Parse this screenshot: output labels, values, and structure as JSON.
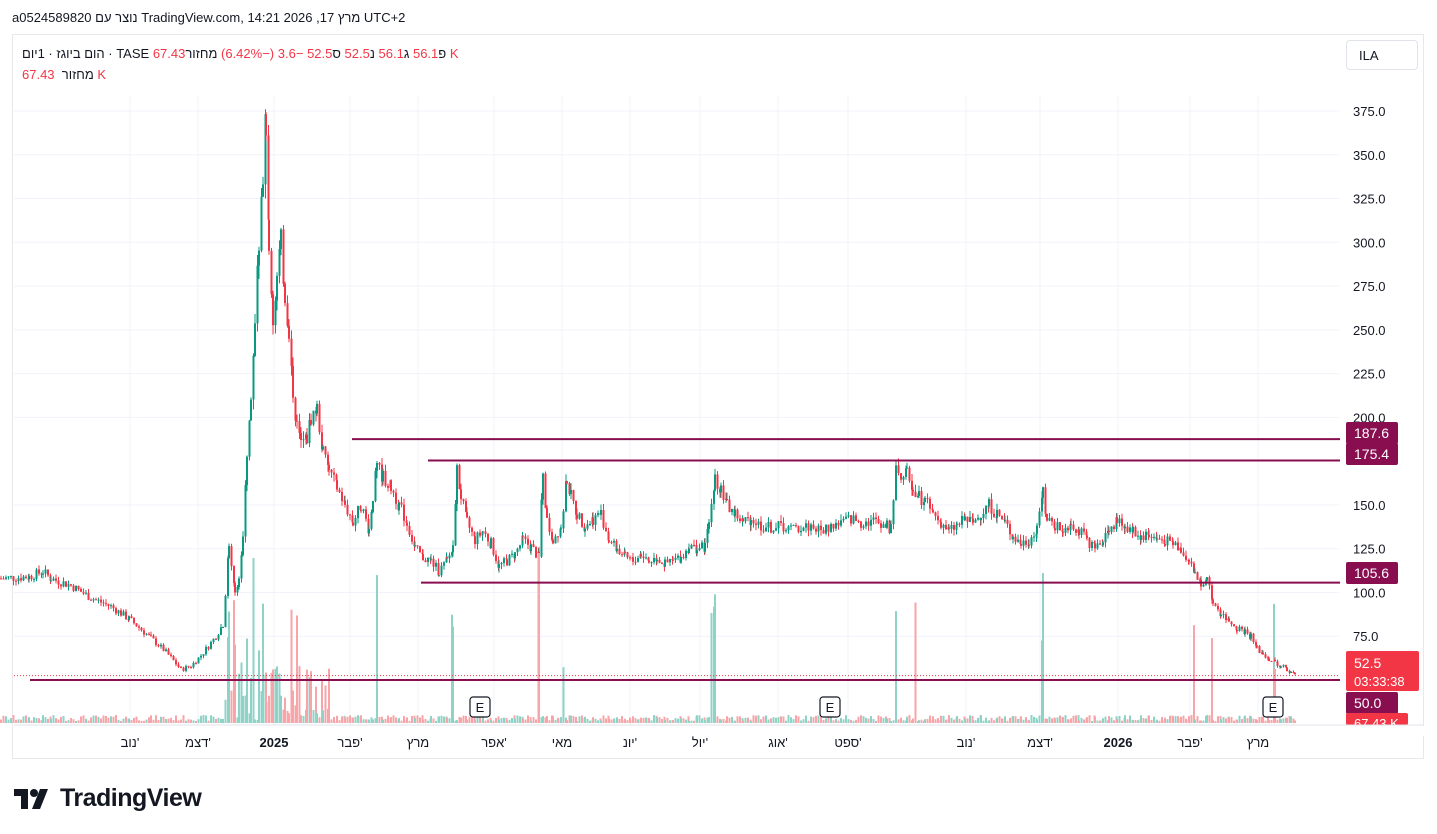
{
  "header": {
    "text": "a0524589820 נוצר עם TradingView.com, 14:21 2026 ,מרץ 17 UTC+2"
  },
  "legend": {
    "title": "הום ביוגז · 1יום · TASE",
    "open_label": "פ",
    "open": "56.1",
    "high_label": "ג",
    "high": "56.1",
    "low_label": "נ",
    "low": "52.5",
    "close_label": "ס",
    "close": "52.5",
    "change": "−3.6 (−6.42%)",
    "volume_label": "מחזור",
    "volume": "67.43 K"
  },
  "symbol_button": "ILA",
  "colors": {
    "up": "#089981",
    "down": "#f23645",
    "vol_up": "#8fd3c7",
    "vol_down": "#f7a5a9",
    "level_line": "#880e4f",
    "grid": "#f0f3fa"
  },
  "chart_data": {
    "type": "candlestick",
    "ylim": [
      42,
      385
    ],
    "y_ticks": [
      "375.0",
      "350.0",
      "325.0",
      "300.0",
      "275.0",
      "250.0",
      "225.0",
      "200.0",
      "150.0",
      "125.0",
      "100.0",
      "75.0"
    ],
    "x_ticks": [
      "נוב'",
      "דצמ'",
      "2025",
      "פבר'",
      "מרץ",
      "אפר'",
      "מאי",
      "יונ'",
      "יול'",
      "אוג'",
      "ספט'",
      "נוב'",
      "דצמ'",
      "2026",
      "פבר'",
      "מרץ"
    ],
    "horizontal_levels": [
      {
        "value": 187.6,
        "label": "187.6"
      },
      {
        "value": 175.4,
        "label": "175.4"
      },
      {
        "value": 105.6,
        "label": "105.6"
      },
      {
        "value": 50.0,
        "label": "50.0"
      }
    ],
    "last_price": {
      "value": 52.5,
      "label": "52.5",
      "countdown": "03:33:38"
    },
    "volume_label": "67.43 K",
    "earnings_markers": [
      "E",
      "E",
      "E"
    ],
    "price_path": [
      [
        0,
        108
      ],
      [
        28,
        109
      ],
      [
        42,
        112
      ],
      [
        50,
        108
      ],
      [
        70,
        104
      ],
      [
        90,
        97
      ],
      [
        110,
        92
      ],
      [
        128,
        85
      ],
      [
        150,
        74
      ],
      [
        165,
        66
      ],
      [
        180,
        56
      ],
      [
        190,
        58
      ],
      [
        200,
        64
      ],
      [
        215,
        75
      ],
      [
        222,
        82
      ],
      [
        228,
        125
      ],
      [
        234,
        102
      ],
      [
        238,
        108
      ],
      [
        242,
        130
      ],
      [
        246,
        175
      ],
      [
        250,
        210
      ],
      [
        254,
        255
      ],
      [
        258,
        300
      ],
      [
        262,
        340
      ],
      [
        265,
        370
      ],
      [
        268,
        300
      ],
      [
        272,
        255
      ],
      [
        276,
        280
      ],
      [
        280,
        300
      ],
      [
        284,
        270
      ],
      [
        288,
        250
      ],
      [
        292,
        215
      ],
      [
        296,
        195
      ],
      [
        300,
        185
      ],
      [
        306,
        188
      ],
      [
        310,
        200
      ],
      [
        316,
        205
      ],
      [
        322,
        180
      ],
      [
        328,
        170
      ],
      [
        336,
        160
      ],
      [
        344,
        150
      ],
      [
        352,
        140
      ],
      [
        360,
        150
      ],
      [
        368,
        136
      ],
      [
        372,
        155
      ],
      [
        376,
        172
      ],
      [
        382,
        166
      ],
      [
        390,
        160
      ],
      [
        398,
        150
      ],
      [
        406,
        140
      ],
      [
        414,
        125
      ],
      [
        422,
        120
      ],
      [
        430,
        118
      ],
      [
        438,
        112
      ],
      [
        446,
        118
      ],
      [
        452,
        125
      ],
      [
        456,
        170
      ],
      [
        460,
        155
      ],
      [
        466,
        140
      ],
      [
        474,
        130
      ],
      [
        482,
        135
      ],
      [
        490,
        128
      ],
      [
        498,
        115
      ],
      [
        506,
        118
      ],
      [
        514,
        122
      ],
      [
        522,
        130
      ],
      [
        530,
        126
      ],
      [
        538,
        120
      ],
      [
        542,
        170
      ],
      [
        546,
        140
      ],
      [
        552,
        130
      ],
      [
        560,
        138
      ],
      [
        566,
        165
      ],
      [
        570,
        155
      ],
      [
        576,
        145
      ],
      [
        584,
        138
      ],
      [
        592,
        142
      ],
      [
        600,
        145
      ],
      [
        608,
        130
      ],
      [
        616,
        125
      ],
      [
        624,
        120
      ],
      [
        632,
        118
      ],
      [
        640,
        122
      ],
      [
        648,
        118
      ],
      [
        656,
        120
      ],
      [
        664,
        116
      ],
      [
        672,
        118
      ],
      [
        680,
        120
      ],
      [
        688,
        126
      ],
      [
        696,
        125
      ],
      [
        704,
        126
      ],
      [
        708,
        140
      ],
      [
        714,
        165
      ],
      [
        720,
        160
      ],
      [
        726,
        150
      ],
      [
        734,
        145
      ],
      [
        742,
        140
      ],
      [
        750,
        142
      ],
      [
        760,
        138
      ],
      [
        770,
        137
      ],
      [
        780,
        138
      ],
      [
        790,
        136
      ],
      [
        800,
        137
      ],
      [
        810,
        138
      ],
      [
        820,
        135
      ],
      [
        830,
        138
      ],
      [
        840,
        140
      ],
      [
        850,
        142
      ],
      [
        860,
        140
      ],
      [
        870,
        141
      ],
      [
        880,
        140
      ],
      [
        886,
        138
      ],
      [
        890,
        136
      ],
      [
        895,
        175
      ],
      [
        900,
        165
      ],
      [
        906,
        168
      ],
      [
        912,
        160
      ],
      [
        918,
        155
      ],
      [
        924,
        152
      ],
      [
        932,
        145
      ],
      [
        940,
        140
      ],
      [
        948,
        135
      ],
      [
        956,
        138
      ],
      [
        964,
        142
      ],
      [
        972,
        140
      ],
      [
        980,
        145
      ],
      [
        988,
        150
      ],
      [
        996,
        145
      ],
      [
        1004,
        140
      ],
      [
        1012,
        132
      ],
      [
        1020,
        128
      ],
      [
        1028,
        130
      ],
      [
        1036,
        135
      ],
      [
        1042,
        160
      ],
      [
        1046,
        140
      ],
      [
        1054,
        138
      ],
      [
        1062,
        136
      ],
      [
        1070,
        140
      ],
      [
        1078,
        135
      ],
      [
        1086,
        130
      ],
      [
        1094,
        125
      ],
      [
        1102,
        130
      ],
      [
        1108,
        137
      ],
      [
        1116,
        140
      ],
      [
        1124,
        138
      ],
      [
        1132,
        135
      ],
      [
        1140,
        132
      ],
      [
        1148,
        133
      ],
      [
        1156,
        130
      ],
      [
        1164,
        130
      ],
      [
        1172,
        128
      ],
      [
        1180,
        125
      ],
      [
        1188,
        118
      ],
      [
        1194,
        110
      ],
      [
        1200,
        106
      ],
      [
        1206,
        108
      ],
      [
        1212,
        95
      ],
      [
        1220,
        88
      ],
      [
        1228,
        84
      ],
      [
        1236,
        80
      ],
      [
        1244,
        78
      ],
      [
        1250,
        75
      ],
      [
        1256,
        68
      ],
      [
        1262,
        65
      ],
      [
        1268,
        62
      ],
      [
        1274,
        60
      ],
      [
        1280,
        58
      ],
      [
        1286,
        56
      ],
      [
        1290,
        54
      ],
      [
        1294,
        52.5
      ]
    ]
  }
}
